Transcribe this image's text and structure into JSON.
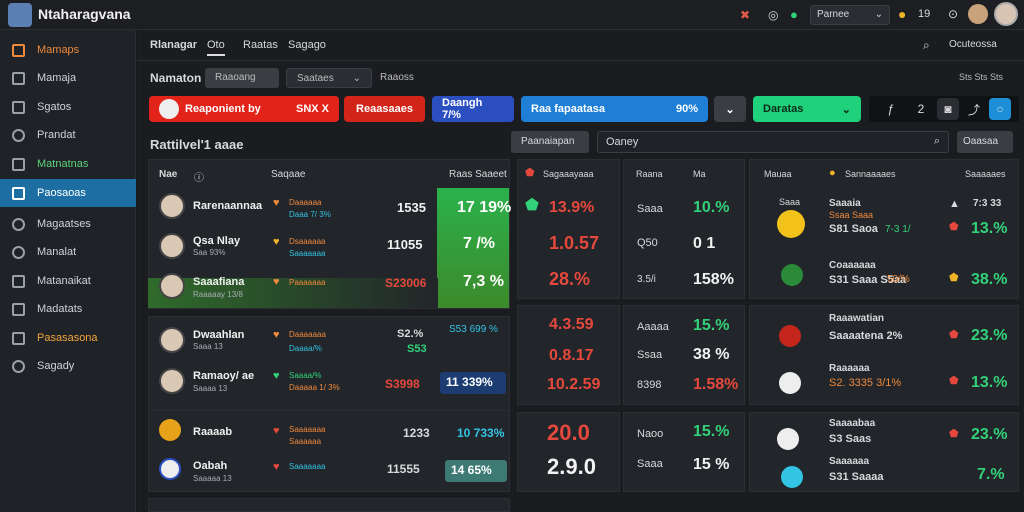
{
  "app": {
    "title": "Ntaharagvana"
  },
  "topbar": {
    "status": "Parnee",
    "count": "19"
  },
  "sidebar": {
    "items": [
      {
        "label": "Mamaps"
      },
      {
        "label": "Mamaja"
      },
      {
        "label": "Sgatos"
      },
      {
        "label": "Prandat"
      },
      {
        "label": "Matnatnas"
      },
      {
        "label": "Paosaoas"
      },
      {
        "label": "Magaatses"
      },
      {
        "label": "Manalat"
      },
      {
        "label": "Matanaikat"
      },
      {
        "label": "Madatats"
      },
      {
        "label": "Pasasasona"
      },
      {
        "label": "Sagady"
      }
    ]
  },
  "header": {
    "tabs": [
      "Rlanagar",
      "Oto",
      "Raatas",
      "Sagago"
    ],
    "right_label": "Ocuteossa",
    "subtitle": "Namaton",
    "sub_input": "Raaoang",
    "sub_select": "Saataes",
    "sub_label": "Raaoss",
    "sub_right": "Sts Sts Sts"
  },
  "actions": {
    "pill1": {
      "label": "Reaponient by",
      "value": "SNX X"
    },
    "pill2": {
      "label": "Reaasaaes"
    },
    "pill3": {
      "label": "Daangh 7/%"
    },
    "pill4": {
      "label": "Raa fapaatasa",
      "value": "90%"
    },
    "pill5": {
      "label": "Daratas"
    }
  },
  "section": {
    "title": "Rattilvel'1 aaae",
    "filter_btn": "Paanaiapan",
    "search": "Oaney",
    "right_btn": "Oaasaa"
  },
  "table_header": {
    "col1": "Nae",
    "col2": "Saqaae",
    "col3": "Raas Saaeet",
    "col4": "Sagaaayaaa",
    "col5": "Raana",
    "col6": "Ma",
    "col7": "Mauaa",
    "col8": "Sannaaaaes",
    "col9": "Saaaaaes"
  },
  "rows": [
    {
      "name": "Rarenaannaa",
      "sub": "",
      "g1": "Daaaaaa",
      "g2": "Daaa 7/ 3%",
      "val": "1535",
      "pct": "17 19%",
      "c1": "13.9%",
      "c2": "Saaa",
      "c3": "10.%",
      "r1": "Saaaia",
      "r2": "Ssaa Saaa",
      "r3": "S81 Saoa",
      "r4": "7-3 1/ ",
      "r5": "13.%",
      "r6": "7:3 33"
    },
    {
      "name": "Qsa Nlay",
      "sub": "Saa 93%",
      "g1": "Dsaaaaaa",
      "g2": "Saaaaaaa",
      "val": "11055",
      "pct": "7 /%",
      "c1": "1.0.57",
      "c2": "Q50",
      "c3": "0 1",
      "r1": "Coaaaaaa",
      "r2": "S31 Saaa S5aa",
      "r3": "50/%",
      "r5": "38.%"
    },
    {
      "name": "Saaafiana",
      "sub": "Raaaaay 13/8",
      "g1": "Paaaaaaa",
      "val": "S23006",
      "pct": "7,3 %",
      "c1": "28.%",
      "c2": "3.5/i",
      "c3": "158%"
    },
    {
      "name": "Dwaahlan",
      "sub": "Saaa 13",
      "g1": "Daaaaaaa",
      "g2": "Daaaa/%",
      "val": "S2.%",
      "val2": "S53",
      "pct": "S53 699 %",
      "c1": "4.3.59",
      "c2": "Aaaaa",
      "c3": "15.%",
      "r1": "Raaawatian",
      "r2": "Saaaatena 2%",
      "r5": "23.%"
    },
    {
      "name": "Ramaoy/ ae",
      "sub": "Saaaa 13",
      "g1": "Saaaa/%",
      "g2": "Daaaaa 1/ 3%",
      "val": "S3998",
      "pct": "11 339%",
      "c1": "0.8.17",
      "c2": "Ssaa",
      "c3": "38 %",
      "r1": "Raaaaaa",
      "r2": "S2. 3335 3/1%",
      "r5": "13.%"
    },
    {
      "name": "Raaaab",
      "sub": "",
      "g1": "Saaaaaaa",
      "g2": "Saaaaaa",
      "val": "1233",
      "pct": "10 733%",
      "c1": "10.2.59",
      "c2": "8398",
      "c3": "1.58%",
      "r1": "Saaaabaa",
      "r2": "S3 Saas",
      "r5": "23.%"
    },
    {
      "name": "Oabah",
      "sub": "Saaaaa 13",
      "g1": "Saaaaaaa",
      "val": "11555",
      "pct": "14 65%",
      "c1": "20.0",
      "c2": "Naoo",
      "c3": "15.%",
      "r1": "Saaaaaa",
      "r2": "S31 Saaaa",
      "r5": "7.%"
    },
    {
      "c1": "2.9.0",
      "c2": "Saaa",
      "c3": "15 %"
    }
  ]
}
